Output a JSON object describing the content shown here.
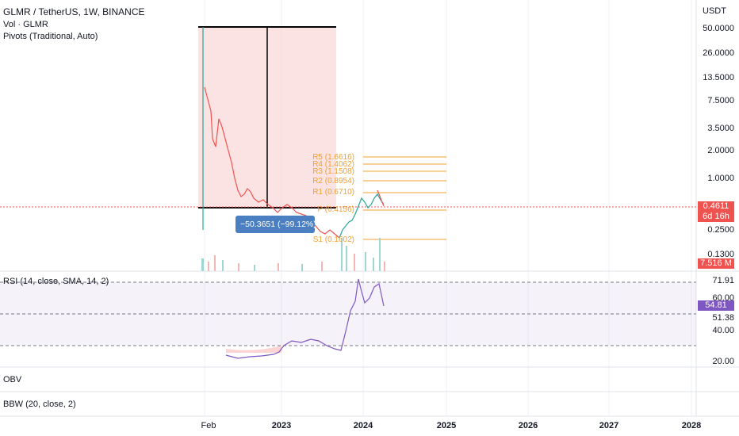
{
  "header": {
    "symbol_line": "GLMR / TetherUS, 1W, BINANCE",
    "vol_line": "Vol · GLMR",
    "pivots_line": "Pivots (Traditional, Auto)",
    "currency": "USDT"
  },
  "price_axis": {
    "labels": [
      "50.0000",
      "26.0000",
      "13.5000",
      "7.5000",
      "3.5000",
      "2.0000",
      "1.0000",
      "0.2500",
      "0.1300"
    ],
    "current_price": "0.4611",
    "countdown": "6d 16h",
    "volume_badge": "7.516 M",
    "colors": {
      "price_badge": "#ef5350",
      "volume_badge": "#ef5350"
    }
  },
  "pivots": {
    "levels": [
      {
        "name": "R5",
        "label": "R5 (1.6616)"
      },
      {
        "name": "R4",
        "label": "R4 (1.4062)"
      },
      {
        "name": "R3",
        "label": "R3 (1.1508)"
      },
      {
        "name": "R2",
        "label": "R2 (0.8954)"
      },
      {
        "name": "R1",
        "label": "R1 (0.6710)"
      },
      {
        "name": "P",
        "label": "P (0.4156)"
      },
      {
        "name": "S1",
        "label": "S1 (0.1602)"
      }
    ],
    "color": "#f0a030"
  },
  "measure_tool": {
    "label": "−50.3651 (−99.12%) −50365.1"
  },
  "rsi": {
    "title": "RSI (14, close, SMA, 14, 2)",
    "axis_labels": [
      "71.91",
      "60.00",
      "51.38",
      "40.00",
      "20.00"
    ],
    "current_value": "54.81",
    "color": "#7e57c2"
  },
  "panes": {
    "obv_title": "OBV",
    "bbw_title": "BBW (20, close, 2)"
  },
  "time_axis": {
    "labels": [
      "Feb",
      "2023",
      "2024",
      "2025",
      "2026",
      "2027",
      "2028"
    ]
  }
}
